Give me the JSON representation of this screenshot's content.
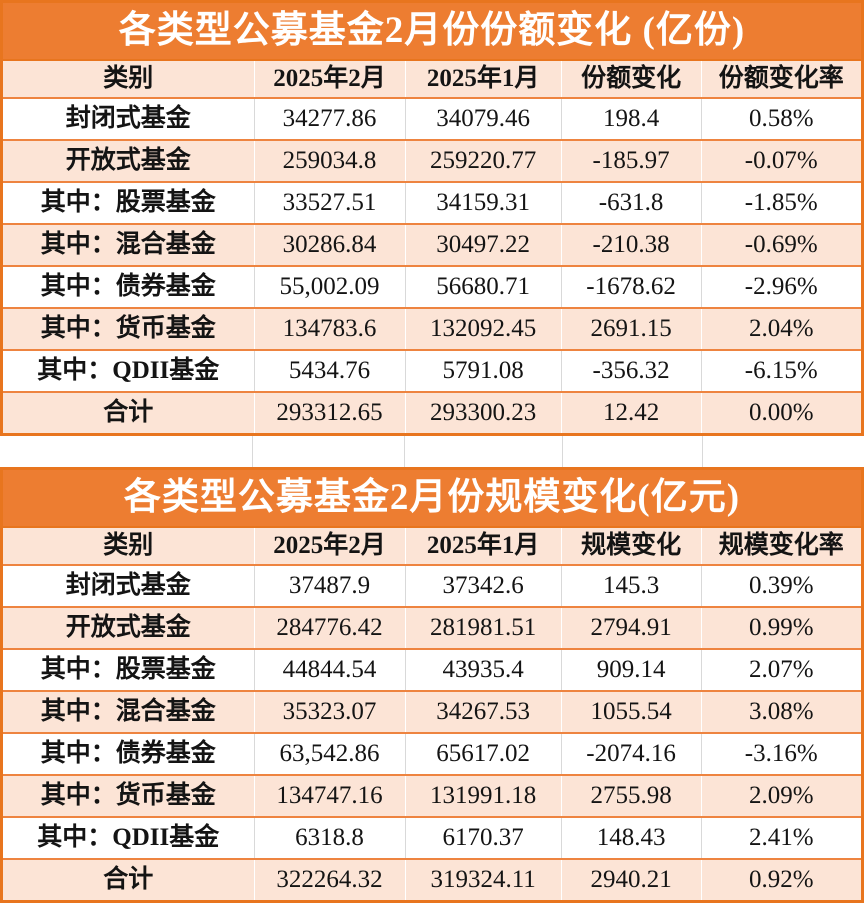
{
  "colors": {
    "title_background": "#ED7D31",
    "title_text": "#FFFFFF",
    "stripe_background": "#FCE4D6",
    "outer_border": "#E8751E",
    "row_separator": "#EE8440",
    "grid_line": "#D9D9D9",
    "body_text": "#141414"
  },
  "chart_data": [
    {
      "type": "table",
      "title": "各类型公募基金2月份份额变化 (亿份)",
      "columns": [
        "类别",
        "2025年2月",
        "2025年1月",
        "份额变化",
        "份额变化率"
      ],
      "rows": [
        [
          "封闭式基金",
          "34277.86",
          "34079.46",
          "198.4",
          "0.58%"
        ],
        [
          "开放式基金",
          "259034.8",
          "259220.77",
          "-185.97",
          "-0.07%"
        ],
        [
          "其中：股票基金",
          "33527.51",
          "34159.31",
          "-631.8",
          "-1.85%"
        ],
        [
          "其中：混合基金",
          "30286.84",
          "30497.22",
          "-210.38",
          "-0.69%"
        ],
        [
          "其中：债券基金",
          "55,002.09",
          "56680.71",
          "-1678.62",
          "-2.96%"
        ],
        [
          "其中：货币基金",
          "134783.6",
          "132092.45",
          "2691.15",
          "2.04%"
        ],
        [
          "其中：QDII基金",
          "5434.76",
          "5791.08",
          "-356.32",
          "-6.15%"
        ],
        [
          "合计",
          "293312.65",
          "293300.23",
          "12.42",
          "0.00%"
        ]
      ]
    },
    {
      "type": "table",
      "title": "各类型公募基金2月份规模变化(亿元)",
      "columns": [
        "类别",
        "2025年2月",
        "2025年1月",
        "规模变化",
        "规模变化率"
      ],
      "rows": [
        [
          "封闭式基金",
          "37487.9",
          "37342.6",
          "145.3",
          "0.39%"
        ],
        [
          "开放式基金",
          "284776.42",
          "281981.51",
          "2794.91",
          "0.99%"
        ],
        [
          "其中：股票基金",
          "44844.54",
          "43935.4",
          "909.14",
          "2.07%"
        ],
        [
          "其中：混合基金",
          "35323.07",
          "34267.53",
          "1055.54",
          "3.08%"
        ],
        [
          "其中：债券基金",
          "63,542.86",
          "65617.02",
          "-2074.16",
          "-3.16%"
        ],
        [
          "其中：货币基金",
          "134747.16",
          "131991.18",
          "2755.98",
          "2.09%"
        ],
        [
          "其中：QDII基金",
          "6318.8",
          "6170.37",
          "148.43",
          "2.41%"
        ],
        [
          "合计",
          "322264.32",
          "319324.11",
          "2940.21",
          "0.92%"
        ]
      ]
    }
  ]
}
